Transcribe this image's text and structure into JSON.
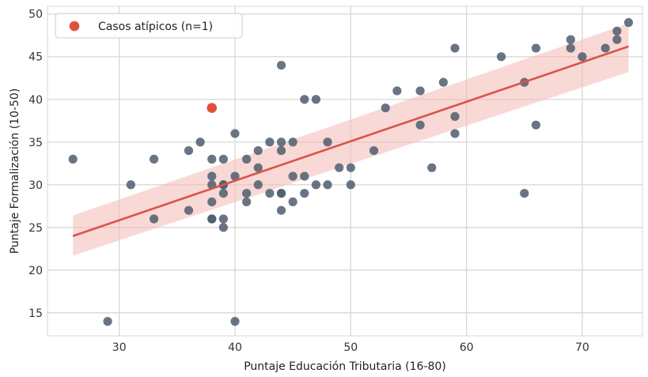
{
  "chart_data": {
    "type": "scatter",
    "title": "",
    "xlabel": "Puntaje Educación Tributaria (16-80)",
    "ylabel": "Puntaje Formalización (10-50)",
    "xlim": [
      23.8,
      75.2
    ],
    "ylim": [
      12.3,
      50.9
    ],
    "x_ticks": [
      "30",
      "40",
      "50",
      "60",
      "70"
    ],
    "y_ticks": [
      "15",
      "20",
      "25",
      "30",
      "35",
      "40",
      "45",
      "50"
    ],
    "grid": true,
    "legend": {
      "placement": "top-left",
      "entries": [
        "Casos atípicos (n=1)"
      ]
    },
    "colors": {
      "points": "#4f5d6e",
      "outlier": "#e0513d",
      "fit_line": "#d9534a",
      "band": "#f4b9b3",
      "grid": "#d7d7d7"
    },
    "series": [
      {
        "role": "points",
        "x": [
          26,
          29,
          31,
          33,
          33,
          36,
          36,
          37,
          38,
          38,
          38,
          38,
          38,
          38,
          39,
          39,
          39,
          39,
          39,
          39,
          40,
          40,
          40,
          41,
          41,
          41,
          42,
          42,
          42,
          43,
          43,
          44,
          44,
          44,
          44,
          44,
          44,
          45,
          45,
          45,
          46,
          46,
          46,
          47,
          47,
          48,
          48,
          49,
          50,
          50,
          52,
          53,
          54,
          56,
          56,
          57,
          58,
          59,
          59,
          59,
          63,
          65,
          65,
          66,
          66,
          69,
          69,
          70,
          72,
          73,
          73,
          74
        ],
        "y": [
          33,
          14,
          30,
          26,
          33,
          27,
          34,
          35,
          26,
          28,
          30,
          31,
          33,
          26,
          25,
          26,
          29,
          30,
          33,
          30,
          31,
          36,
          14,
          28,
          29,
          33,
          30,
          32,
          34,
          29,
          35,
          27,
          29,
          34,
          35,
          44,
          29,
          28,
          31,
          35,
          29,
          31,
          40,
          30,
          40,
          30,
          35,
          32,
          30,
          32,
          34,
          39,
          41,
          37,
          41,
          32,
          42,
          36,
          38,
          46,
          45,
          29,
          42,
          37,
          46,
          46,
          47,
          45,
          46,
          47,
          48,
          49
        ]
      },
      {
        "role": "outlier",
        "name": "Casos atípicos (n=1)",
        "x": [
          38
        ],
        "y": [
          39
        ]
      }
    ],
    "fit": {
      "type": "linear",
      "x": [
        26,
        74
      ],
      "y": [
        24.0,
        46.2
      ],
      "ci_lower": [
        21.7,
        43.2
      ],
      "ci_upper": [
        26.4,
        48.9
      ]
    }
  }
}
